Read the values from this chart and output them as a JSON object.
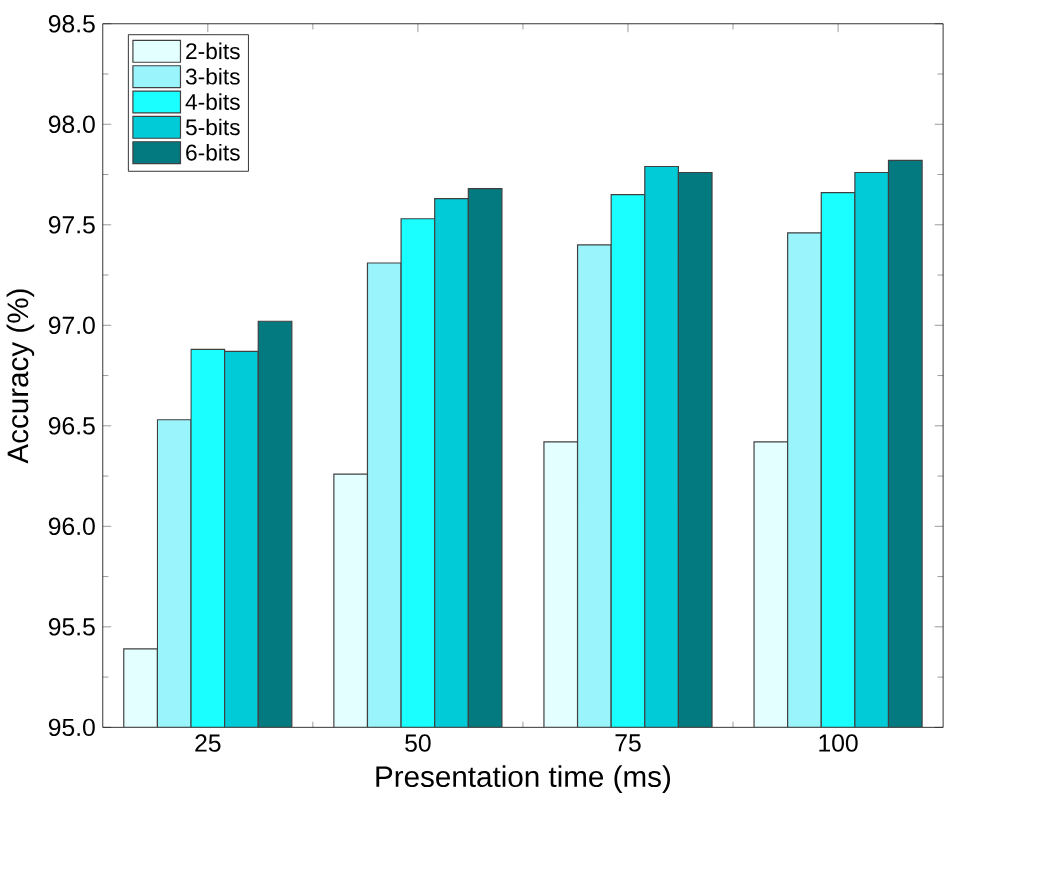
{
  "chart_data": {
    "type": "bar",
    "xlabel": "Presentation time (ms)",
    "ylabel": "Accuracy (%)",
    "categories": [
      "25",
      "50",
      "75",
      "100"
    ],
    "series": [
      {
        "name": "2-bits",
        "color": "#e3ffff",
        "values": [
          95.39,
          96.26,
          96.42,
          96.42
        ]
      },
      {
        "name": "3-bits",
        "color": "#9af4fc",
        "values": [
          96.53,
          97.31,
          97.4,
          97.46
        ]
      },
      {
        "name": "4-bits",
        "color": "#1affff",
        "values": [
          96.88,
          97.53,
          97.65,
          97.66
        ]
      },
      {
        "name": "5-bits",
        "color": "#00cbd6",
        "values": [
          96.87,
          97.63,
          97.79,
          97.76
        ]
      },
      {
        "name": "6-bits",
        "color": "#037a80",
        "values": [
          97.02,
          97.68,
          97.76,
          97.82
        ]
      }
    ],
    "ylim": [
      95.0,
      98.5
    ],
    "yticks": [
      {
        "value": 95.0,
        "label": "95.0"
      },
      {
        "value": 95.5,
        "label": "95.5"
      },
      {
        "value": 96.0,
        "label": "96.0"
      },
      {
        "value": 96.5,
        "label": "96.5"
      },
      {
        "value": 97.0,
        "label": "97.0"
      },
      {
        "value": 97.5,
        "label": "97.5"
      },
      {
        "value": 98.0,
        "label": "98.0"
      },
      {
        "value": 98.5,
        "label": "98.5"
      }
    ],
    "legend": "top left",
    "grid": false
  }
}
